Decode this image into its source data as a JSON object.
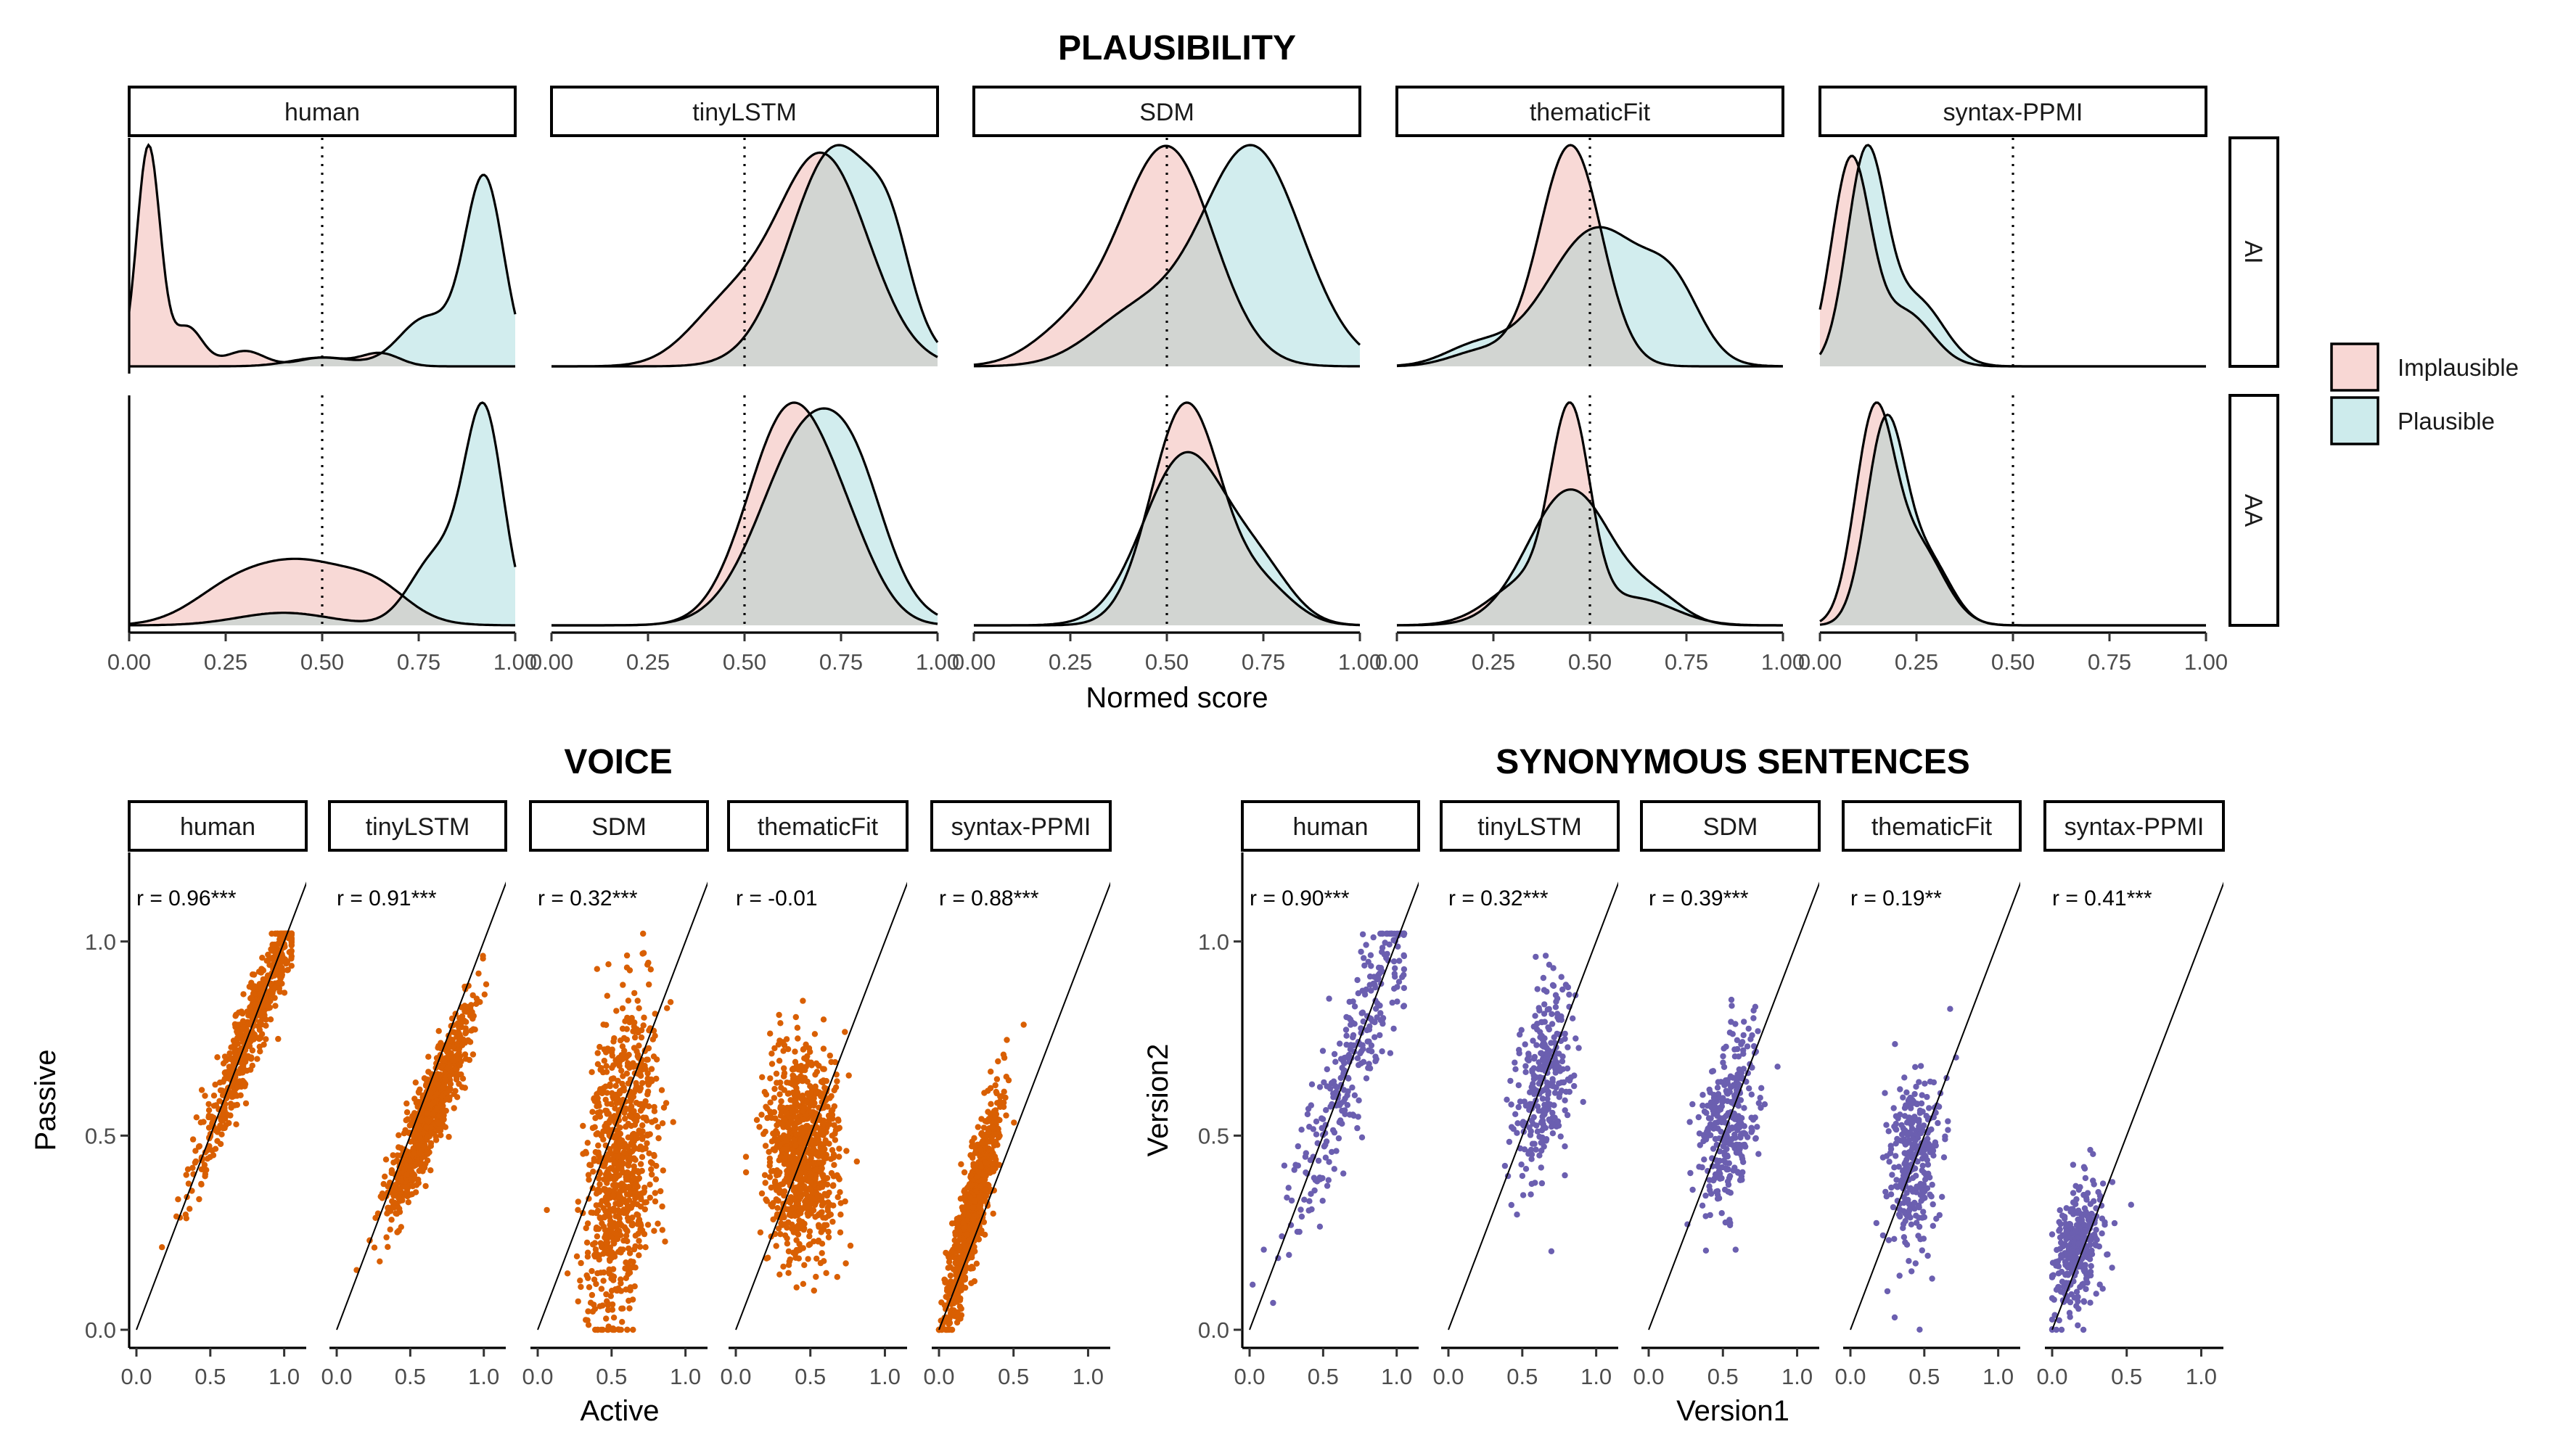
{
  "chart_data": [
    {
      "type": "area",
      "subtype": "density",
      "title": "PLAUSIBILITY",
      "xlabel": "Normed score",
      "ylabel": "",
      "xlim": [
        0,
        1
      ],
      "x_ticks": [
        "0.00",
        "0.25",
        "0.50",
        "0.75",
        "1.00"
      ],
      "reference_line": {
        "x": 0.5,
        "style": "dotted"
      },
      "facet_columns": [
        "human",
        "tinyLSTM",
        "SDM",
        "thematicFit",
        "syntax-PPMI"
      ],
      "facet_rows": [
        "AI",
        "AA"
      ],
      "legend": {
        "position": "right",
        "entries": [
          "Implausible",
          "Plausible"
        ]
      },
      "colors": {
        "Implausible": "#f8d7d4",
        "Plausible": "#cdebec",
        "overlap": "#d2d5d2",
        "outline": "#000000"
      },
      "grid": false,
      "series_params": {
        "AI": {
          "human": {
            "Implausible": [
              [
                0.05,
                0.03,
                1.0
              ],
              [
                0.15,
                0.04,
                0.18
              ],
              [
                0.3,
                0.05,
                0.07
              ],
              [
                0.5,
                0.06,
                0.04
              ],
              [
                0.65,
                0.05,
                0.06
              ]
            ],
            "Plausible": [
              [
                0.92,
                0.05,
                0.85
              ],
              [
                0.77,
                0.07,
                0.22
              ],
              [
                0.5,
                0.08,
                0.04
              ]
            ]
          },
          "tinyLSTM": {
            "Implausible": [
              [
                0.7,
                0.12,
                0.48
              ],
              [
                0.45,
                0.1,
                0.12
              ]
            ],
            "Plausible": [
              [
                0.74,
                0.12,
                0.5
              ],
              [
                0.88,
                0.05,
                0.12
              ]
            ]
          },
          "SDM": {
            "Implausible": [
              [
                0.5,
                0.12,
                0.52
              ],
              [
                0.25,
                0.1,
                0.08
              ]
            ],
            "Plausible": [
              [
                0.72,
                0.13,
                0.52
              ],
              [
                0.42,
                0.12,
                0.12
              ]
            ]
          },
          "thematicFit": {
            "Implausible": [
              [
                0.45,
                0.08,
                0.72
              ],
              [
                0.22,
                0.08,
                0.05
              ]
            ],
            "Plausible": [
              [
                0.52,
                0.13,
                0.45
              ],
              [
                0.72,
                0.07,
                0.18
              ],
              [
                0.2,
                0.08,
                0.06
              ]
            ]
          },
          "syntax-PPMI": {
            "Implausible": [
              [
                0.08,
                0.05,
                0.68
              ],
              [
                0.22,
                0.07,
                0.18
              ]
            ],
            "Plausible": [
              [
                0.12,
                0.05,
                0.7
              ],
              [
                0.25,
                0.07,
                0.22
              ]
            ]
          }
        },
        "AA": {
          "human": {
            "Implausible": [
              [
                0.45,
                0.15,
                0.25
              ],
              [
                0.25,
                0.1,
                0.08
              ],
              [
                0.65,
                0.08,
                0.08
              ]
            ],
            "Plausible": [
              [
                0.92,
                0.05,
                0.82
              ],
              [
                0.8,
                0.07,
                0.28
              ],
              [
                0.4,
                0.12,
                0.05
              ]
            ]
          },
          "tinyLSTM": {
            "Implausible": [
              [
                0.62,
                0.11,
                0.55
              ],
              [
                0.78,
                0.08,
                0.1
              ]
            ],
            "Plausible": [
              [
                0.68,
                0.13,
                0.52
              ],
              [
                0.8,
                0.07,
                0.1
              ]
            ]
          },
          "SDM": {
            "Implausible": [
              [
                0.55,
                0.09,
                0.62
              ],
              [
                0.75,
                0.08,
                0.1
              ]
            ],
            "Plausible": [
              [
                0.55,
                0.11,
                0.48
              ],
              [
                0.75,
                0.08,
                0.12
              ]
            ]
          },
          "thematicFit": {
            "Implausible": [
              [
                0.45,
                0.05,
                0.72
              ],
              [
                0.35,
                0.1,
                0.18
              ],
              [
                0.62,
                0.1,
                0.1
              ]
            ],
            "Plausible": [
              [
                0.45,
                0.11,
                0.52
              ],
              [
                0.68,
                0.07,
                0.08
              ]
            ]
          },
          "syntax-PPMI": {
            "Implausible": [
              [
                0.14,
                0.05,
                0.62
              ],
              [
                0.25,
                0.07,
                0.25
              ]
            ],
            "Plausible": [
              [
                0.17,
                0.05,
                0.62
              ],
              [
                0.28,
                0.06,
                0.2
              ]
            ]
          }
        }
      }
    },
    {
      "type": "scatter",
      "title": "VOICE",
      "xlabel": "Active",
      "ylabel": "Passive",
      "xlim": [
        0,
        1
      ],
      "ylim": [
        0,
        1
      ],
      "x_ticks": [
        "0.0",
        "0.5",
        "1.0"
      ],
      "y_ticks": [
        "0.0",
        "0.5",
        "1.0"
      ],
      "color": "#d95f02",
      "identity_line": true,
      "panels": [
        {
          "name": "human",
          "r": "r = 0.96***",
          "n": 620,
          "mx": 0.8,
          "sx": 0.2,
          "my": 0.8,
          "sy": 0.2,
          "corr": 0.96
        },
        {
          "name": "tinyLSTM",
          "r": "r = 0.91***",
          "n": 900,
          "mx": 0.62,
          "sx": 0.14,
          "my": 0.55,
          "sy": 0.13,
          "corr": 0.91
        },
        {
          "name": "SDM",
          "r": "r = 0.32***",
          "n": 820,
          "mx": 0.55,
          "sx": 0.12,
          "my": 0.42,
          "sy": 0.21,
          "corr": 0.32
        },
        {
          "name": "thematicFit",
          "r": "r = -0.01",
          "n": 900,
          "mx": 0.45,
          "sx": 0.12,
          "my": 0.45,
          "sy": 0.13,
          "corr": -0.01
        },
        {
          "name": "syntax-PPMI",
          "r": "r = 0.88***",
          "n": 820,
          "mx": 0.22,
          "sx": 0.09,
          "my": 0.3,
          "sy": 0.14,
          "corr": 0.88
        }
      ]
    },
    {
      "type": "scatter",
      "title": "SYNONYMOUS SENTENCES",
      "xlabel": "Version1",
      "ylabel": "Version2",
      "xlim": [
        0,
        1
      ],
      "ylim": [
        0,
        1
      ],
      "x_ticks": [
        "0.0",
        "0.5",
        "1.0"
      ],
      "y_ticks": [
        "0.0",
        "0.5",
        "1.0"
      ],
      "color": "#6b5fb0",
      "identity_line": true,
      "panels": [
        {
          "name": "human",
          "r": "r = 0.90***",
          "n": 300,
          "mx": 0.7,
          "sx": 0.24,
          "my": 0.7,
          "sy": 0.24,
          "corr": 0.9
        },
        {
          "name": "tinyLSTM",
          "r": "r = 0.32***",
          "n": 300,
          "mx": 0.65,
          "sx": 0.09,
          "my": 0.64,
          "sy": 0.13,
          "corr": 0.32
        },
        {
          "name": "SDM",
          "r": "r = 0.39***",
          "n": 300,
          "mx": 0.55,
          "sx": 0.1,
          "my": 0.55,
          "sy": 0.12,
          "corr": 0.39
        },
        {
          "name": "thematicFit",
          "r": "r = 0.19**",
          "n": 300,
          "mx": 0.43,
          "sx": 0.09,
          "my": 0.43,
          "sy": 0.13,
          "corr": 0.19
        },
        {
          "name": "syntax-PPMI",
          "r": "r = 0.41***",
          "n": 300,
          "mx": 0.17,
          "sx": 0.09,
          "my": 0.2,
          "sy": 0.09,
          "corr": 0.41
        }
      ]
    }
  ]
}
